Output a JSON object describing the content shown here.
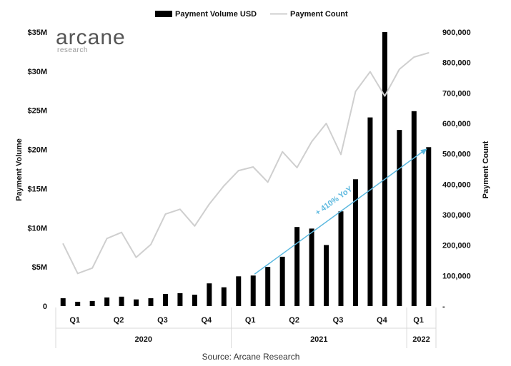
{
  "logo": {
    "name": "arcane",
    "tagline": "research"
  },
  "source": "Source: Arcane Research",
  "colors": {
    "bar": "#000000",
    "line": "#cfcfcf",
    "annotation": "#5bb8df",
    "grid": "#d9d9d9"
  },
  "chart_data": {
    "type": "bar",
    "legend_position": "top",
    "grid": false,
    "left_axis": {
      "label": "Payment Volume",
      "range": [
        0,
        35000000
      ],
      "ticks": [
        0,
        5000000,
        10000000,
        15000000,
        20000000,
        25000000,
        30000000,
        35000000
      ],
      "tick_labels": [
        "0",
        "$5M",
        "$10M",
        "$15M",
        "$20M",
        "$25M",
        "$30M",
        "$35M"
      ]
    },
    "right_axis": {
      "label": "Payment Count",
      "range": [
        0,
        900000
      ],
      "ticks": [
        0,
        100000,
        200000,
        300000,
        400000,
        500000,
        600000,
        700000,
        800000,
        900000
      ],
      "tick_labels": [
        "-",
        "100,000",
        "200,000",
        "300,000",
        "400,000",
        "500,000",
        "600,000",
        "700,000",
        "800,000",
        "900,000"
      ]
    },
    "quarter_labels": [
      "Q1",
      "Q2",
      "Q3",
      "Q4",
      "Q1",
      "Q2",
      "Q3",
      "Q4",
      "Q1"
    ],
    "year_labels": [
      "2020",
      "2021",
      "2022"
    ],
    "series": [
      {
        "name": "Payment Volume USD",
        "axis": "left",
        "render": "bar",
        "values": [
          1000000,
          550000,
          650000,
          1100000,
          1200000,
          850000,
          1000000,
          1550000,
          1650000,
          1450000,
          2900000,
          2400000,
          3800000,
          3900000,
          5000000,
          6300000,
          10100000,
          9900000,
          7800000,
          12100000,
          16200000,
          24100000,
          35000000,
          22500000,
          24900000,
          20300000
        ]
      },
      {
        "name": "Payment Count",
        "axis": "right",
        "render": "line",
        "values": [
          205000,
          107000,
          125000,
          222000,
          242000,
          160000,
          202000,
          302000,
          318000,
          263000,
          335000,
          395000,
          445000,
          457000,
          407000,
          507000,
          455000,
          540000,
          600000,
          498000,
          705000,
          770000,
          690000,
          778000,
          818000,
          832000
        ]
      }
    ],
    "annotations": [
      {
        "text": "+ 410% YoY"
      }
    ]
  }
}
